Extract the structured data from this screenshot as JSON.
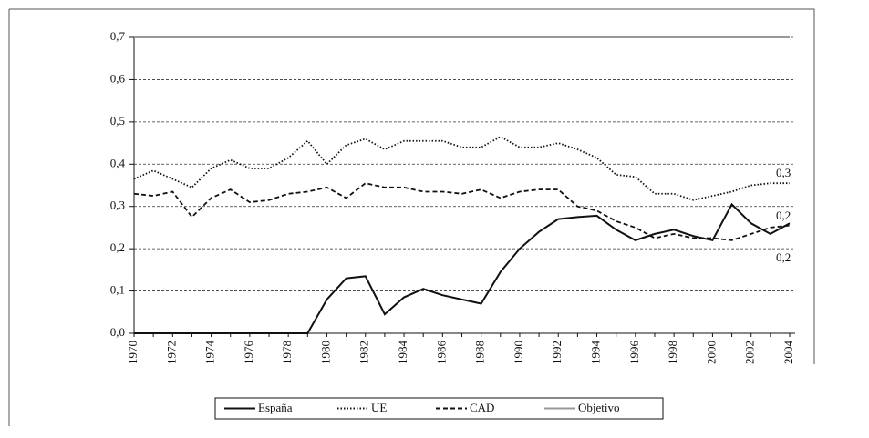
{
  "chart_data": {
    "type": "line",
    "categories": [
      "1970",
      null,
      "1972",
      null,
      "1974",
      null,
      "1976",
      null,
      "1978",
      null,
      "1980",
      null,
      "1982",
      null,
      "1984",
      null,
      "1986",
      null,
      "1988",
      null,
      "1990",
      null,
      "1992",
      null,
      "1994",
      null,
      "1996",
      null,
      "1998",
      null,
      "2000",
      null,
      "2002",
      null,
      "2004"
    ],
    "series": [
      {
        "name": "España",
        "color": "#111111",
        "dash": "solid",
        "values": [
          0,
          0,
          0,
          0,
          0,
          0,
          0,
          0,
          0,
          0,
          0.08,
          0.13,
          0.135,
          0.045,
          0.085,
          0.105,
          0.09,
          0.08,
          0.07,
          0.145,
          0.2,
          0.24,
          0.27,
          0.275,
          0.278,
          0.245,
          0.22,
          0.235,
          0.245,
          0.23,
          0.22,
          0.305,
          0.26,
          0.235,
          0.26
        ]
      },
      {
        "name": "UE",
        "color": "#111111",
        "dash": "dotted",
        "values": [
          0.365,
          0.385,
          0.365,
          0.345,
          0.39,
          0.41,
          0.39,
          0.39,
          0.415,
          0.455,
          0.4,
          0.445,
          0.46,
          0.435,
          0.455,
          0.455,
          0.455,
          0.44,
          0.44,
          0.465,
          0.44,
          0.44,
          0.45,
          0.435,
          0.415,
          0.375,
          0.37,
          0.33,
          0.33,
          0.315,
          0.325,
          0.335,
          0.35,
          0.355,
          0.355
        ]
      },
      {
        "name": "CAD",
        "color": "#111111",
        "dash": "dashed",
        "values": [
          0.33,
          0.325,
          0.335,
          0.275,
          0.32,
          0.34,
          0.31,
          0.315,
          0.33,
          0.335,
          0.345,
          0.32,
          0.355,
          0.345,
          0.345,
          0.335,
          0.335,
          0.33,
          0.34,
          0.32,
          0.335,
          0.34,
          0.34,
          0.3,
          0.29,
          0.265,
          0.25,
          0.225,
          0.235,
          0.225,
          0.225,
          0.22,
          0.235,
          0.25,
          0.255
        ]
      },
      {
        "name": "Objetivo",
        "color": "#999999",
        "dash": "solid",
        "values": [
          0.7,
          0.7,
          0.7,
          0.7,
          0.7,
          0.7,
          0.7,
          0.7,
          0.7,
          0.7,
          0.7,
          0.7,
          0.7,
          0.7,
          0.7,
          0.7,
          0.7,
          0.7,
          0.7,
          0.7,
          0.7,
          0.7,
          0.7,
          0.7,
          0.7,
          0.7,
          0.7,
          0.7,
          0.7,
          0.7,
          0.7,
          0.7,
          0.7,
          0.7,
          0.7
        ]
      }
    ],
    "ylim": [
      0,
      0.7
    ],
    "yticks": [
      {
        "value": 0,
        "label": "0,0"
      },
      {
        "value": 0.1,
        "label": "0,1"
      },
      {
        "value": 0.2,
        "label": "0,2"
      },
      {
        "value": 0.3,
        "label": "0,3"
      },
      {
        "value": 0.4,
        "label": "0,4"
      },
      {
        "value": 0.5,
        "label": "0,5"
      },
      {
        "value": 0.6,
        "label": "0,6"
      },
      {
        "value": 0.7,
        "label": "0,7"
      }
    ],
    "grid": true,
    "legend": "bottom",
    "annotations": [
      "0,3",
      "0,2",
      "0,2"
    ]
  }
}
